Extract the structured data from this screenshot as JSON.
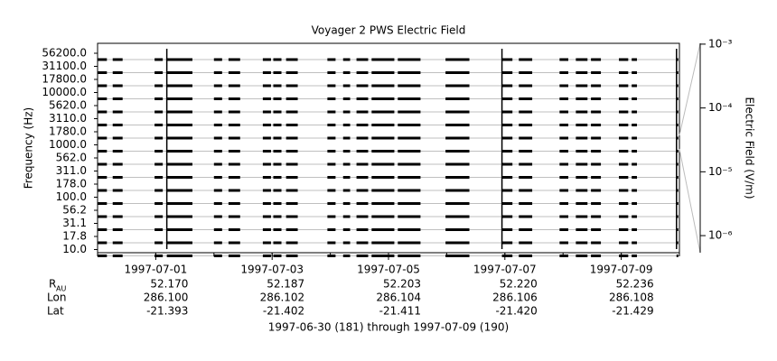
{
  "chart_data": {
    "type": "channel-coverage",
    "title": "Voyager 2 PWS Electric Field",
    "ylabel": "Frequency (Hz)",
    "y2label": "Electric Field (V/m)",
    "categories": [
      "56200.0",
      "31100.0",
      "17800.0",
      "10000.0",
      "5620.0",
      "3110.0",
      "1780.0",
      "1000.0",
      "562.0",
      "311.0",
      "178.0",
      "100.0",
      "56.2",
      "31.1",
      "17.8",
      "10.0"
    ],
    "color": "#000000",
    "xlim": [
      181,
      191
    ],
    "xticks": [
      {
        "value": 182,
        "label": "1997-07-01"
      },
      {
        "value": 184,
        "label": "1997-07-03"
      },
      {
        "value": 186,
        "label": "1997-07-05"
      },
      {
        "value": 188,
        "label": "1997-07-07"
      },
      {
        "value": 190,
        "label": "1997-07-09"
      }
    ],
    "xminorticks": [
      181,
      182,
      183,
      184,
      185,
      186,
      187,
      188,
      189,
      190,
      191
    ],
    "segments": [
      [
        181.0,
        181.16
      ],
      [
        181.26,
        181.43
      ],
      [
        181.98,
        182.12
      ],
      [
        182.19,
        182.63
      ],
      [
        183.0,
        183.14
      ],
      [
        183.25,
        183.45
      ],
      [
        183.84,
        183.98
      ],
      [
        184.02,
        184.16
      ],
      [
        184.24,
        184.44
      ],
      [
        184.95,
        185.09
      ],
      [
        185.22,
        185.34
      ],
      [
        185.45,
        185.65
      ],
      [
        185.71,
        186.1
      ],
      [
        186.16,
        186.55
      ],
      [
        186.98,
        187.39
      ],
      [
        187.95,
        188.13
      ],
      [
        188.24,
        188.47
      ],
      [
        188.94,
        189.09
      ],
      [
        189.22,
        189.42
      ],
      [
        189.48,
        189.65
      ],
      [
        189.96,
        190.12
      ],
      [
        190.18,
        190.27
      ],
      [
        190.95,
        190.98
      ]
    ],
    "spikes": [
      182.19,
      187.95,
      190.95
    ],
    "y2log": true,
    "y2lim": [
      5.4e-07,
      0.00103
    ],
    "y2ticks": [
      {
        "value": 0.001,
        "label": "10⁻³"
      },
      {
        "value": 0.0001,
        "label": "10⁻⁴"
      },
      {
        "value": 1e-05,
        "label": "10⁻⁵"
      },
      {
        "value": 1e-06,
        "label": "10⁻⁶"
      }
    ],
    "ephemeris": [
      {
        "label": "R",
        "sub": "AU",
        "values": [
          "52.170",
          "52.187",
          "52.203",
          "52.220",
          "52.236"
        ]
      },
      {
        "label": "Lon",
        "values": [
          "286.100",
          "286.102",
          "286.104",
          "286.106",
          "286.108"
        ]
      },
      {
        "label": "Lat",
        "values": [
          "-21.393",
          "-21.402",
          "-21.411",
          "-21.420",
          "-21.429"
        ]
      }
    ],
    "footer": "1997-06-30 (181) through 1997-07-09 (190)"
  }
}
